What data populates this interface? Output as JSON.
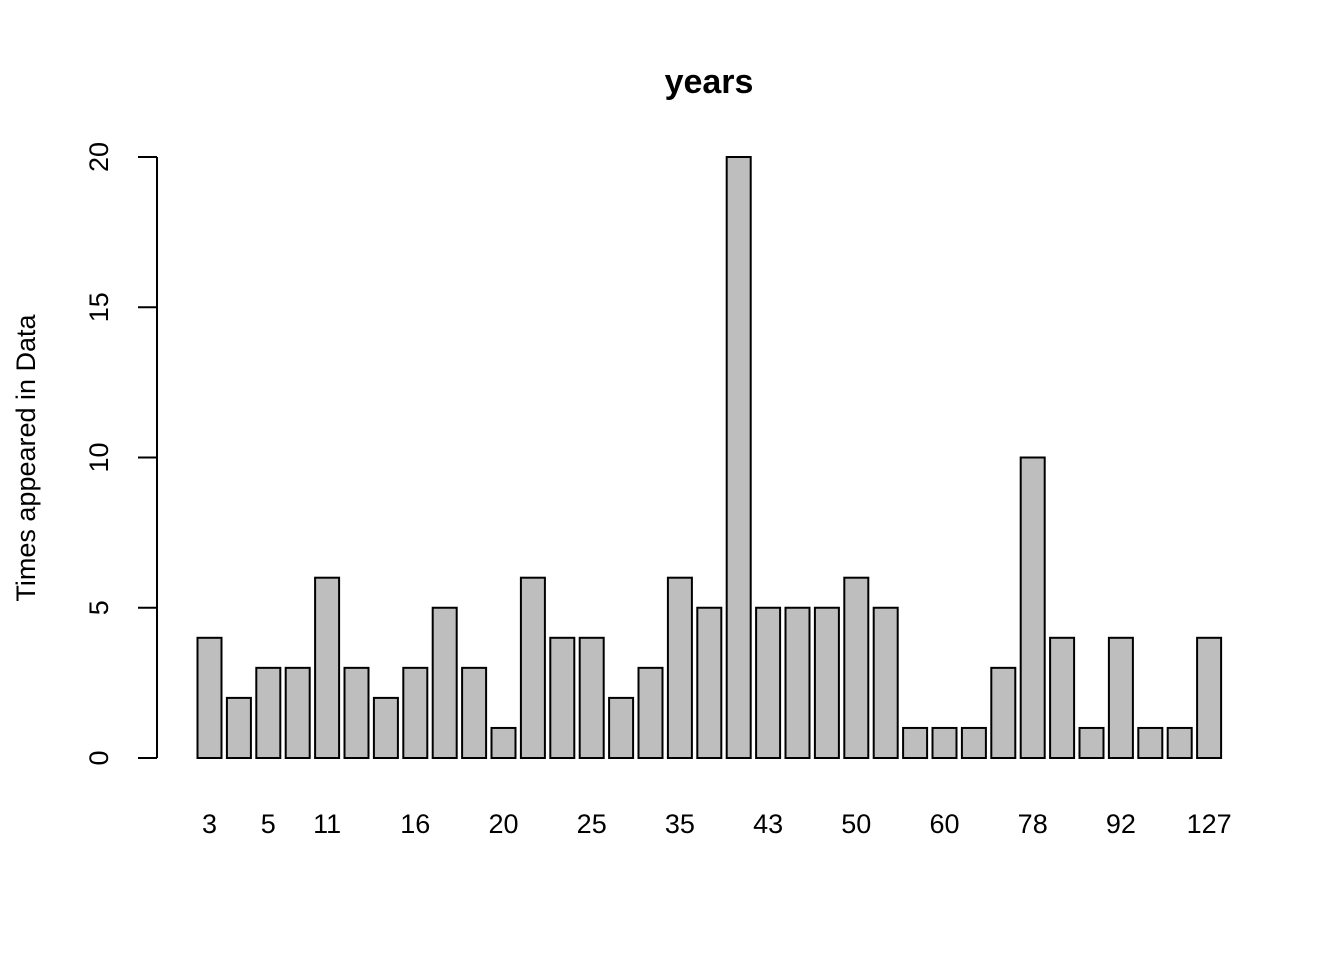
{
  "chart_data": {
    "type": "bar",
    "title": "years",
    "xlabel": "",
    "ylabel": "Times appeared in Data",
    "ylim": [
      0,
      20
    ],
    "yticks": [
      0,
      5,
      10,
      15,
      20
    ],
    "values": [
      4,
      2,
      3,
      3,
      6,
      3,
      2,
      3,
      5,
      3,
      1,
      6,
      4,
      4,
      2,
      3,
      6,
      5,
      20,
      5,
      5,
      5,
      6,
      5,
      1,
      1,
      1,
      3,
      10,
      4,
      1,
      4,
      1,
      1,
      4
    ],
    "tick_labels": [
      {
        "bar_index": 0,
        "label": "3"
      },
      {
        "bar_index": 2,
        "label": "5"
      },
      {
        "bar_index": 4,
        "label": "11"
      },
      {
        "bar_index": 7,
        "label": "16"
      },
      {
        "bar_index": 10,
        "label": "20"
      },
      {
        "bar_index": 13,
        "label": "25"
      },
      {
        "bar_index": 16,
        "label": "35"
      },
      {
        "bar_index": 19,
        "label": "43"
      },
      {
        "bar_index": 22,
        "label": "50"
      },
      {
        "bar_index": 25,
        "label": "60"
      },
      {
        "bar_index": 28,
        "label": "78"
      },
      {
        "bar_index": 31,
        "label": "92"
      },
      {
        "bar_index": 34,
        "label": "127"
      }
    ],
    "bar_color": "#bebebe",
    "grid": false,
    "legend": "none"
  }
}
